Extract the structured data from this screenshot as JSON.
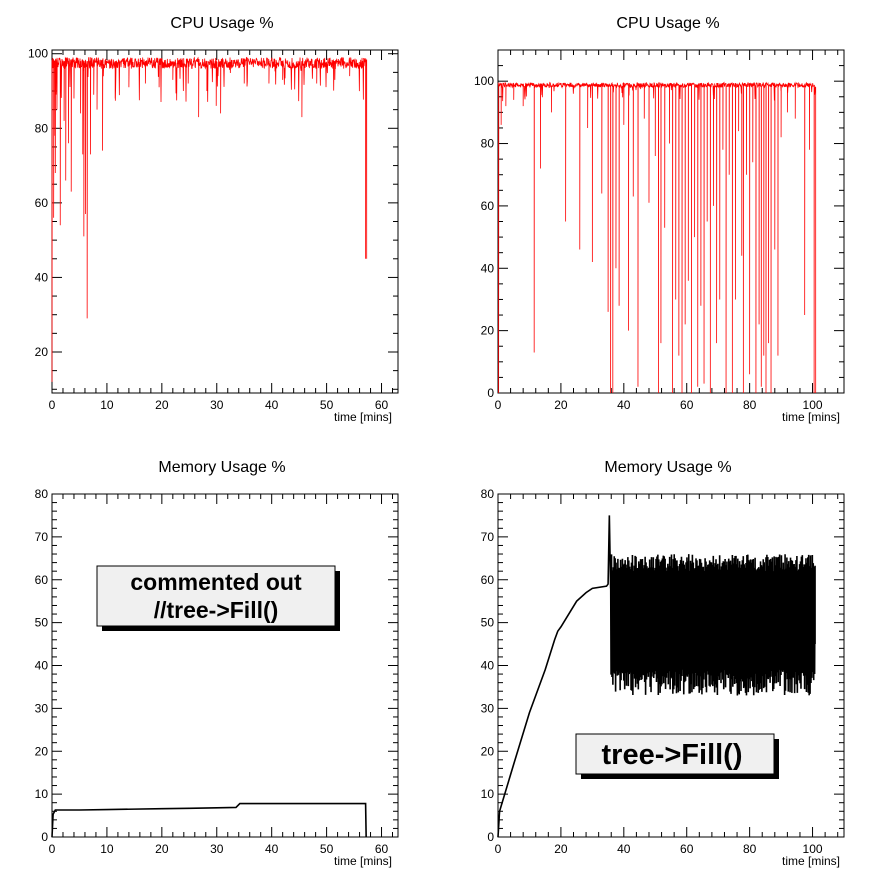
{
  "colors": {
    "cpu": "#ff0000",
    "memory": "#000000",
    "note_fill": "#f0f0f0",
    "note_shadow": "#000000"
  },
  "chart_data": [
    {
      "id": "cpu_left",
      "type": "line",
      "title": "CPU Usage %",
      "xlabel": "time [mins]",
      "ylabel": "",
      "xlim": [
        0,
        63
      ],
      "ylim": [
        9,
        101
      ],
      "xticks": [
        "0",
        "10",
        "20",
        "30",
        "40",
        "50",
        "60"
      ],
      "yticks": [
        "20",
        "40",
        "60",
        "80",
        "100"
      ],
      "xtick_values": [
        0,
        10,
        20,
        30,
        40,
        50,
        60
      ],
      "ytick_values": [
        20,
        40,
        60,
        80,
        100
      ],
      "grid": false,
      "color": "cpu",
      "series": [
        {
          "x_end": 57.3,
          "baseline": 99,
          "noise": 3,
          "dips": [
            [
              0.0,
              12
            ],
            [
              0.3,
              56
            ],
            [
              0.4,
              78
            ],
            [
              0.6,
              68
            ],
            [
              0.9,
              85
            ],
            [
              1.5,
              54
            ],
            [
              2.2,
              82
            ],
            [
              2.5,
              66
            ],
            [
              3.0,
              76
            ],
            [
              3.5,
              63
            ],
            [
              4.0,
              88
            ],
            [
              5.2,
              84
            ],
            [
              5.6,
              73
            ],
            [
              5.8,
              51
            ],
            [
              6.1,
              57
            ],
            [
              6.4,
              29
            ],
            [
              7.0,
              73
            ],
            [
              7.6,
              89
            ],
            [
              8.2,
              85
            ],
            [
              9.2,
              74
            ],
            [
              11.5,
              88
            ],
            [
              14.0,
              91
            ],
            [
              17.0,
              92
            ],
            [
              19.5,
              91
            ],
            [
              22.0,
              93
            ],
            [
              24.8,
              92
            ],
            [
              26.7,
              83
            ],
            [
              28.2,
              90
            ],
            [
              29.9,
              86
            ],
            [
              30.7,
              84
            ],
            [
              35.0,
              92
            ],
            [
              39.5,
              92
            ],
            [
              42.0,
              93
            ],
            [
              45.5,
              83
            ],
            [
              48.2,
              92
            ],
            [
              51.5,
              93
            ],
            [
              54.2,
              94
            ],
            [
              57.1,
              45
            ]
          ]
        }
      ]
    },
    {
      "id": "cpu_right",
      "type": "line",
      "title": "CPU Usage %",
      "xlabel": "time [mins]",
      "ylabel": "",
      "xlim": [
        0,
        110
      ],
      "ylim": [
        0,
        110
      ],
      "xticks": [
        "0",
        "20",
        "40",
        "60",
        "80",
        "100"
      ],
      "yticks": [
        "0",
        "20",
        "40",
        "60",
        "80",
        "100"
      ],
      "xtick_values": [
        0,
        20,
        40,
        60,
        80,
        100
      ],
      "ytick_values": [
        0,
        20,
        40,
        60,
        80,
        100
      ],
      "grid": false,
      "color": "cpu",
      "series": [
        {
          "x_end": 101,
          "baseline": 99.5,
          "noise": 1.5,
          "dips": [
            [
              0.2,
              0
            ],
            [
              1.0,
              86
            ],
            [
              2.5,
              92
            ],
            [
              5.0,
              94
            ],
            [
              8.0,
              92
            ],
            [
              11.5,
              13
            ],
            [
              13.5,
              72
            ],
            [
              17.0,
              90
            ],
            [
              21.5,
              55
            ],
            [
              26.0,
              46
            ],
            [
              28.5,
              85
            ],
            [
              30.0,
              42
            ],
            [
              33.0,
              64
            ],
            [
              35.0,
              26
            ],
            [
              35.8,
              0
            ],
            [
              36.5,
              0
            ],
            [
              37.5,
              40
            ],
            [
              38.5,
              28
            ],
            [
              40.0,
              86
            ],
            [
              41.5,
              20
            ],
            [
              43.0,
              63
            ],
            [
              44.5,
              2
            ],
            [
              46.5,
              88
            ],
            [
              48.0,
              61
            ],
            [
              50.0,
              76
            ],
            [
              51.0,
              0
            ],
            [
              51.8,
              16
            ],
            [
              53.0,
              53
            ],
            [
              54.5,
              80
            ],
            [
              55.5,
              0
            ],
            [
              56.5,
              30
            ],
            [
              57.5,
              12
            ],
            [
              58.5,
              0
            ],
            [
              59.5,
              22
            ],
            [
              60.5,
              36
            ],
            [
              61.5,
              0
            ],
            [
              62.5,
              50
            ],
            [
              63.5,
              2
            ],
            [
              64.5,
              28
            ],
            [
              65.5,
              3
            ],
            [
              66.5,
              55
            ],
            [
              67.5,
              0
            ],
            [
              68.5,
              60
            ],
            [
              69.5,
              16
            ],
            [
              70.5,
              30
            ],
            [
              71.5,
              78
            ],
            [
              72.5,
              0
            ],
            [
              73.5,
              70
            ],
            [
              74.5,
              0
            ],
            [
              75.5,
              30
            ],
            [
              76.5,
              84
            ],
            [
              77.5,
              44
            ],
            [
              78.0,
              0
            ],
            [
              79.0,
              70
            ],
            [
              80.0,
              6
            ],
            [
              81.0,
              74
            ],
            [
              82.0,
              0
            ],
            [
              83.0,
              22
            ],
            [
              83.7,
              2
            ],
            [
              84.5,
              12
            ],
            [
              85.2,
              0
            ],
            [
              86.0,
              16
            ],
            [
              86.8,
              0
            ],
            [
              88.0,
              46
            ],
            [
              89.0,
              12
            ],
            [
              90.0,
              82
            ],
            [
              92.0,
              90
            ],
            [
              94.5,
              88
            ],
            [
              97.5,
              25
            ],
            [
              99.0,
              78
            ],
            [
              100.5,
              0
            ]
          ]
        }
      ]
    },
    {
      "id": "mem_left",
      "type": "line",
      "title": "Memory Usage %",
      "xlabel": "time [mins]",
      "ylabel": "",
      "xlim": [
        0,
        63
      ],
      "ylim": [
        0,
        80
      ],
      "xticks": [
        "0",
        "10",
        "20",
        "30",
        "40",
        "50",
        "60"
      ],
      "yticks": [
        "0",
        "10",
        "20",
        "30",
        "40",
        "50",
        "60",
        "70",
        "80"
      ],
      "xtick_values": [
        0,
        10,
        20,
        30,
        40,
        50,
        60
      ],
      "ytick_values": [
        0,
        10,
        20,
        30,
        40,
        50,
        60,
        70,
        80
      ],
      "grid": false,
      "color": "memory",
      "series": [
        {
          "points": [
            [
              0,
              0
            ],
            [
              0.2,
              5.3
            ],
            [
              0.6,
              6.3
            ],
            [
              5,
              6.3
            ],
            [
              10,
              6.4
            ],
            [
              15,
              6.5
            ],
            [
              20,
              6.6
            ],
            [
              25,
              6.7
            ],
            [
              30,
              6.8
            ],
            [
              33.5,
              6.9
            ],
            [
              34.2,
              7.8
            ],
            [
              40,
              7.8
            ],
            [
              50,
              7.8
            ],
            [
              57.1,
              7.8
            ],
            [
              57.2,
              0
            ]
          ]
        }
      ],
      "annotation": {
        "lines": [
          "commented out",
          "//tree->Fill()"
        ],
        "at": [
          18.5,
          58
        ]
      }
    },
    {
      "id": "mem_right",
      "type": "line",
      "title": "Memory Usage %",
      "xlabel": "time [mins]",
      "ylabel": "",
      "xlim": [
        0,
        110
      ],
      "ylim": [
        0,
        80
      ],
      "xticks": [
        "0",
        "20",
        "40",
        "60",
        "80",
        "100"
      ],
      "yticks": [
        "0",
        "10",
        "20",
        "30",
        "40",
        "50",
        "60",
        "70",
        "80"
      ],
      "xtick_values": [
        0,
        20,
        40,
        60,
        80,
        100
      ],
      "ytick_values": [
        0,
        10,
        20,
        30,
        40,
        50,
        60,
        70,
        80
      ],
      "grid": false,
      "color": "memory",
      "series": [
        {
          "points": [
            [
              0,
              0
            ],
            [
              0.5,
              6
            ],
            [
              5,
              17
            ],
            [
              10,
              29
            ],
            [
              15,
              39
            ],
            [
              18,
              46
            ],
            [
              19,
              48
            ],
            [
              20,
              49
            ],
            [
              25,
              55
            ],
            [
              28,
              57
            ],
            [
              30,
              58
            ],
            [
              34.5,
              58.5
            ],
            [
              35,
              59
            ],
            [
              35.4,
              75
            ],
            [
              35.8,
              58
            ]
          ],
          "oscillation": {
            "x_start": 35.8,
            "x_end": 100.8,
            "low": 33,
            "high": 66,
            "end_value": 45
          }
        }
      ],
      "annotation": {
        "lines": [
          "tree->Fill()"
        ],
        "at": [
          55,
          19.5
        ]
      }
    }
  ]
}
